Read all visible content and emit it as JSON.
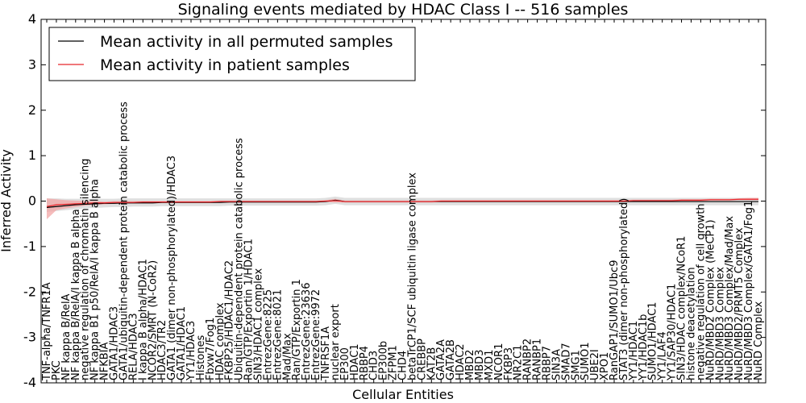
{
  "chart_data": {
    "type": "line",
    "title": "Signaling events mediated by HDAC Class I -- 516 samples",
    "xlabel": "Cellular Entities",
    "ylabel": "Inferred Activity",
    "ylim": [
      -4,
      4
    ],
    "yticks": [
      -4,
      -3,
      -2,
      -1,
      0,
      1,
      2,
      3,
      4
    ],
    "grid": false,
    "legend_position": "top-left",
    "colors": {
      "permuted": "#000000",
      "patient": "#e8262b",
      "permuted_band": "#d4d4d4",
      "patient_band": "#f2a0a0"
    },
    "categories": [
      "TNF-alpha/TNFR1A",
      "PKC",
      "NF kappa B/RelA",
      "NF kappa B/RelA/I kappa B alpha",
      "negative regulation of chromatin silencing",
      "NF kappa B1 p50/RelA/I kappa B alpha",
      "NFKBIA",
      "GATA1/HDAC3",
      "GATA1/ubiquitin-dependent protein catabolic process",
      "RELA/HDAC3",
      "I kappa B alpha/HDAC1",
      "NCOR2/SMRT (N-CoR2)",
      "HDAC3/TR2",
      "GATA1 (dimer non-phosphorylated)/HDAC3",
      "GATA1/HDAC1",
      "YY1/HDAC3",
      "Histones",
      "Fbxw7/Fog1",
      "HDAC complex",
      "FKBP25/HDAC1/HDAC2",
      "Ubiquitin-dependent protein catabolic process",
      "Ran/GTP/Exportin 1/HDAC1",
      "SIN3/HDAC1 complex",
      "EntrezGene:8225",
      "EntrezGene:8021",
      "Mad/Max",
      "Ran/GTP/Exportin 1",
      "EntrezGene:23636",
      "EntrezGene:9972",
      "TNFRSF1A",
      "nuclear export",
      "EP300",
      "HDAC1",
      "RBBP4",
      "CHD3",
      "EP300b",
      "ZFPM1",
      "CHD4",
      "betaTrCP1/SCF ubiquitin ligase complex",
      "CREBBP",
      "KAT2B",
      "GATA2A",
      "GATA2B",
      "HDAC2",
      "MBD2",
      "MBD3",
      "MXD1",
      "NCOR1",
      "FKBP3",
      "NR2C1",
      "RANBP2",
      "RANBP1",
      "RBBP7",
      "SIN3A",
      "SMAD7",
      "SMG1",
      "SUMO1",
      "UBE2I",
      "XPO1",
      "RanGAP1/SUMO1/Ubc9",
      "STAT3 (dimer non-phosphorylated)",
      "YY1/HDAC1",
      "YY1/HDAC1b",
      "SUMO1/HDAC1",
      "YY1/LAF4",
      "YY1/SAP30/HDAC1",
      "SIN3/HDAC complex/NCoR1",
      "histone deacetylation",
      "negative regulation of cell growth",
      "NuRD/MBD2 Complex (MeCP1)",
      "NuRD/MBD3 Complex",
      "NuRD/MBD3 Complex/Mad/Max",
      "NuRD/MBD2/PRMT5 Complex",
      "NuRD/MBD3 Complex/GATA1/Fog1",
      "NuRD Complex"
    ],
    "series": [
      {
        "name": "Mean activity in all permuted samples",
        "values": [
          -0.14,
          -0.12,
          -0.1,
          -0.08,
          -0.07,
          -0.06,
          -0.05,
          -0.05,
          -0.04,
          -0.04,
          -0.04,
          -0.04,
          -0.03,
          -0.03,
          -0.03,
          -0.03,
          -0.03,
          -0.03,
          -0.03,
          -0.02,
          -0.02,
          -0.02,
          -0.02,
          -0.02,
          -0.02,
          -0.02,
          -0.02,
          -0.02,
          -0.02,
          -0.01,
          0.02,
          -0.01,
          -0.01,
          -0.01,
          -0.01,
          -0.01,
          -0.01,
          -0.01,
          -0.01,
          -0.01,
          -0.01,
          -0.01,
          -0.01,
          -0.01,
          -0.01,
          -0.01,
          -0.01,
          -0.01,
          -0.01,
          -0.01,
          -0.01,
          -0.01,
          -0.01,
          -0.01,
          -0.01,
          -0.01,
          -0.01,
          -0.01,
          -0.01,
          -0.01,
          -0.01,
          -0.01,
          -0.01,
          -0.01,
          -0.01,
          -0.01,
          -0.01,
          -0.01,
          -0.01,
          -0.01,
          -0.01,
          -0.01,
          -0.01,
          -0.01,
          -0.01
        ],
        "lower": [
          -0.24,
          -0.22,
          -0.2,
          -0.18,
          -0.16,
          -0.15,
          -0.14,
          -0.13,
          -0.13,
          -0.12,
          -0.12,
          -0.12,
          -0.11,
          -0.11,
          -0.11,
          -0.11,
          -0.11,
          -0.11,
          -0.11,
          -0.1,
          -0.1,
          -0.1,
          -0.1,
          -0.1,
          -0.1,
          -0.1,
          -0.1,
          -0.1,
          -0.1,
          -0.09,
          -0.06,
          -0.09,
          -0.09,
          -0.09,
          -0.09,
          -0.09,
          -0.09,
          -0.09,
          -0.09,
          -0.09,
          -0.09,
          -0.09,
          -0.09,
          -0.09,
          -0.09,
          -0.09,
          -0.09,
          -0.09,
          -0.09,
          -0.09,
          -0.09,
          -0.09,
          -0.09,
          -0.09,
          -0.09,
          -0.09,
          -0.09,
          -0.09,
          -0.09,
          -0.09,
          -0.09,
          -0.09,
          -0.09,
          -0.09,
          -0.09,
          -0.09,
          -0.09,
          -0.09,
          -0.09,
          -0.09,
          -0.09,
          -0.09,
          -0.09,
          -0.09,
          -0.09
        ],
        "upper": [
          0.06,
          0.06,
          0.05,
          0.05,
          0.05,
          0.05,
          0.05,
          0.05,
          0.06,
          0.06,
          0.06,
          0.06,
          0.06,
          0.06,
          0.06,
          0.06,
          0.06,
          0.06,
          0.06,
          0.06,
          0.06,
          0.06,
          0.06,
          0.06,
          0.06,
          0.06,
          0.06,
          0.06,
          0.06,
          0.07,
          0.1,
          0.07,
          0.07,
          0.07,
          0.07,
          0.07,
          0.07,
          0.07,
          0.07,
          0.07,
          0.07,
          0.07,
          0.07,
          0.07,
          0.07,
          0.07,
          0.07,
          0.07,
          0.07,
          0.07,
          0.07,
          0.07,
          0.07,
          0.07,
          0.07,
          0.07,
          0.07,
          0.07,
          0.07,
          0.07,
          0.07,
          0.07,
          0.07,
          0.07,
          0.07,
          0.07,
          0.07,
          0.07,
          0.07,
          0.07,
          0.07,
          0.07,
          0.07,
          0.07,
          0.07
        ]
      },
      {
        "name": "Mean activity in patient samples",
        "values": [
          -0.12,
          -0.08,
          -0.07,
          -0.06,
          -0.05,
          -0.04,
          -0.04,
          -0.03,
          -0.03,
          -0.03,
          -0.02,
          -0.02,
          -0.02,
          -0.02,
          -0.02,
          -0.02,
          -0.02,
          -0.02,
          -0.01,
          -0.01,
          -0.01,
          -0.01,
          -0.01,
          -0.01,
          -0.01,
          -0.01,
          -0.01,
          -0.01,
          -0.01,
          0,
          0.01,
          -0.01,
          -0.01,
          -0.01,
          -0.01,
          -0.01,
          -0.01,
          -0.01,
          -0.01,
          -0.01,
          -0.01,
          0,
          0,
          0,
          0,
          0,
          0,
          0,
          0,
          0,
          0,
          0,
          0,
          0,
          0,
          0,
          0,
          0,
          0,
          0,
          0,
          0.01,
          0.01,
          0.01,
          0.01,
          0.01,
          0.02,
          0.02,
          0.02,
          0.03,
          0.03,
          0.03,
          0.04,
          0.04,
          0.04
        ],
        "lower": [
          -0.4,
          -0.2,
          -0.16,
          -0.13,
          -0.1,
          -0.08,
          -0.07,
          -0.06,
          -0.05,
          -0.05,
          -0.04,
          -0.04,
          -0.04,
          -0.04,
          -0.04,
          -0.04,
          -0.04,
          -0.04,
          -0.03,
          -0.03,
          -0.03,
          -0.03,
          -0.03,
          -0.03,
          -0.03,
          -0.03,
          -0.03,
          -0.03,
          -0.03,
          -0.02,
          -0.03,
          -0.03,
          -0.03,
          -0.03,
          -0.03,
          -0.03,
          -0.03,
          -0.03,
          -0.03,
          -0.03,
          -0.03,
          -0.02,
          -0.02,
          -0.02,
          -0.02,
          -0.02,
          -0.02,
          -0.02,
          -0.02,
          -0.02,
          -0.02,
          -0.02,
          -0.02,
          -0.02,
          -0.02,
          -0.02,
          -0.02,
          -0.02,
          -0.02,
          -0.02,
          -0.02,
          -0.01,
          -0.01,
          -0.01,
          -0.01,
          -0.01,
          0,
          0,
          0,
          0.01,
          0.01,
          0.01,
          0.02,
          0.02,
          0.02
        ],
        "upper": [
          0.06,
          0.04,
          0.02,
          0.01,
          0,
          0,
          -0.01,
          0,
          0,
          0,
          0,
          0,
          0,
          0,
          0,
          0,
          0,
          0,
          0.01,
          0.01,
          0.01,
          0.01,
          0.01,
          0.01,
          0.01,
          0.01,
          0.01,
          0.01,
          0.01,
          0.02,
          0.05,
          0.01,
          0.01,
          0.01,
          0.01,
          0.01,
          0.01,
          0.01,
          0.01,
          0.01,
          0.01,
          0.02,
          0.02,
          0.02,
          0.02,
          0.02,
          0.02,
          0.02,
          0.02,
          0.02,
          0.02,
          0.02,
          0.02,
          0.02,
          0.02,
          0.02,
          0.02,
          0.02,
          0.02,
          0.02,
          0.02,
          0.03,
          0.03,
          0.03,
          0.03,
          0.03,
          0.04,
          0.04,
          0.04,
          0.05,
          0.05,
          0.05,
          0.06,
          0.07,
          0.07
        ]
      }
    ]
  }
}
